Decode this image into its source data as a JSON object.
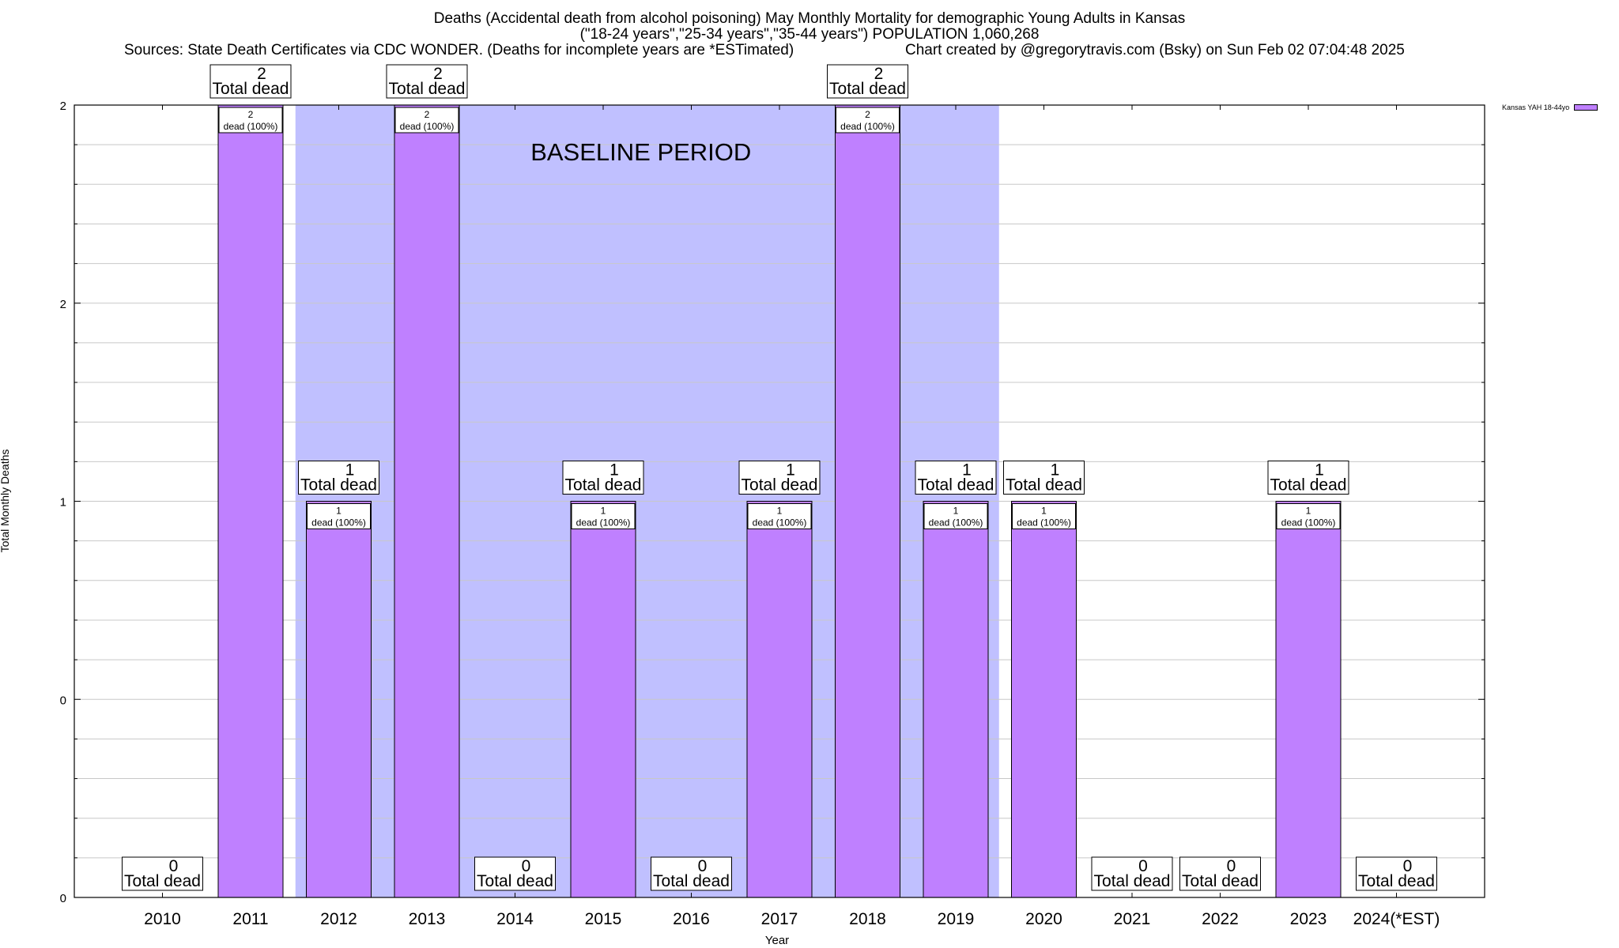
{
  "header": {
    "title_line1": "Deaths (Accidental death from alcohol poisoning) May Monthly Mortality for demographic Young Adults in Kansas",
    "title_line2": "(\"18-24 years\",\"25-34 years\",\"35-44 years\") POPULATION 1,060,268",
    "sources": "Sources: State Death Certificates via CDC WONDER. (Deaths for incomplete years are *ESTimated)",
    "credit": "Chart created by @gregorytravis.com (Bsky) on Sun Feb 02 07:04:48 2025"
  },
  "colors": {
    "bar": "#bf80ff",
    "baseline_band": "#c0c0ff",
    "grid": "#c8c8c8"
  },
  "chart_data": {
    "type": "bar",
    "categories": [
      "2010",
      "2011",
      "2012",
      "2013",
      "2014",
      "2015",
      "2016",
      "2017",
      "2018",
      "2019",
      "2020",
      "2021",
      "2022",
      "2023",
      "2024(*EST)"
    ],
    "series": [
      {
        "name": "Kansas YAH 18-44yo",
        "values": [
          0,
          2,
          1,
          2,
          0,
          1,
          0,
          1,
          2,
          1,
          1,
          0,
          0,
          1,
          0
        ]
      }
    ],
    "xlabel": "Year",
    "ylabel": "Total Monthly Deaths",
    "ylim": [
      0,
      2
    ],
    "y_tick_labels": [
      "0",
      "0",
      "1",
      "2",
      "2"
    ],
    "grid": true,
    "legend_position": "top-right",
    "total_label_suffix": "Total dead",
    "bar_label_suffix": "dead (100%)",
    "baseline_band": {
      "label": "BASELINE PERIOD",
      "start_year": "2012",
      "end_year": "2019"
    }
  }
}
